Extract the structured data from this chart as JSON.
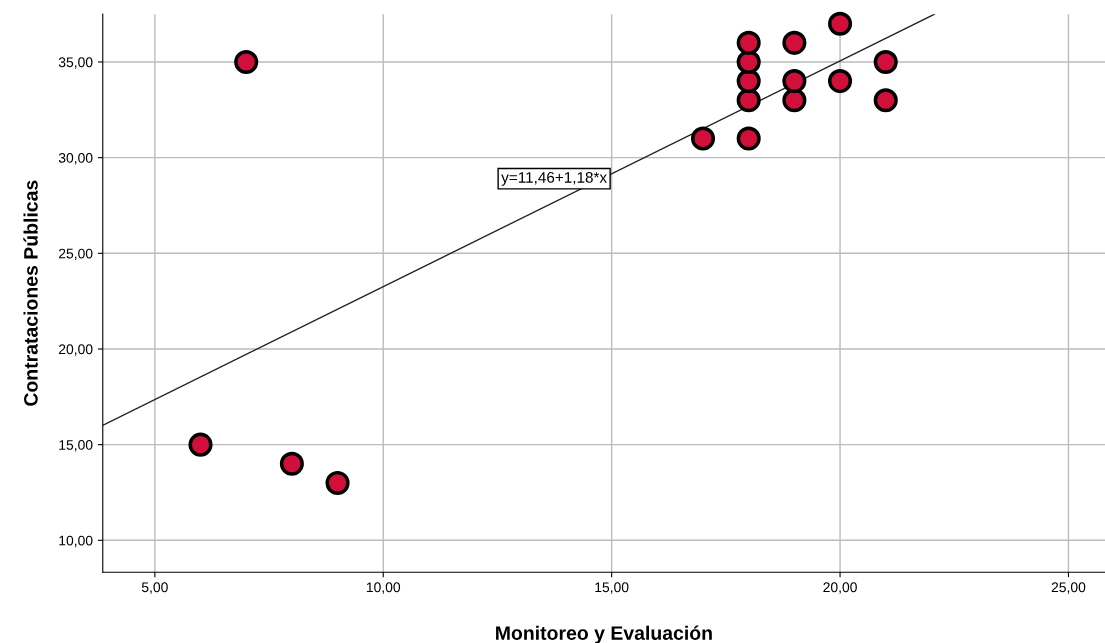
{
  "chart_data": {
    "type": "scatter",
    "xlabel": "Monitoreo y Evaluación",
    "ylabel": "Contrataciones Públicas",
    "xlim": [
      3.86,
      25.8
    ],
    "ylim": [
      8.33,
      37.5
    ],
    "xticks": [
      {
        "value": 5,
        "label": "5,00"
      },
      {
        "value": 10,
        "label": "10,00"
      },
      {
        "value": 15,
        "label": "15,00"
      },
      {
        "value": 20,
        "label": "20,00"
      },
      {
        "value": 25,
        "label": "25,00"
      }
    ],
    "yticks": [
      {
        "value": 10,
        "label": "10,00"
      },
      {
        "value": 15,
        "label": "15,00"
      },
      {
        "value": 20,
        "label": "20,00"
      },
      {
        "value": 25,
        "label": "25,00"
      },
      {
        "value": 30,
        "label": "30,00"
      },
      {
        "value": 35,
        "label": "35,00"
      }
    ],
    "grid": true,
    "series": [
      {
        "type": "scatter",
        "marker": "circle",
        "color": "#d0103a",
        "x": [
          7,
          6,
          8,
          9,
          17,
          18,
          18,
          18,
          18,
          18,
          19,
          19,
          19,
          20,
          20,
          21,
          21
        ],
        "values": [
          35,
          15,
          14,
          13,
          31,
          31,
          33,
          34,
          35,
          36,
          33,
          34,
          36,
          34,
          37,
          33,
          35
        ]
      },
      {
        "type": "line",
        "color": "#222222",
        "x": [
          3.86,
          22.07
        ],
        "values": [
          16.01,
          37.5
        ]
      }
    ],
    "annotations": [
      {
        "text": "y=11,46+1,18*x",
        "x": 14.9,
        "y": 28.9
      }
    ]
  }
}
